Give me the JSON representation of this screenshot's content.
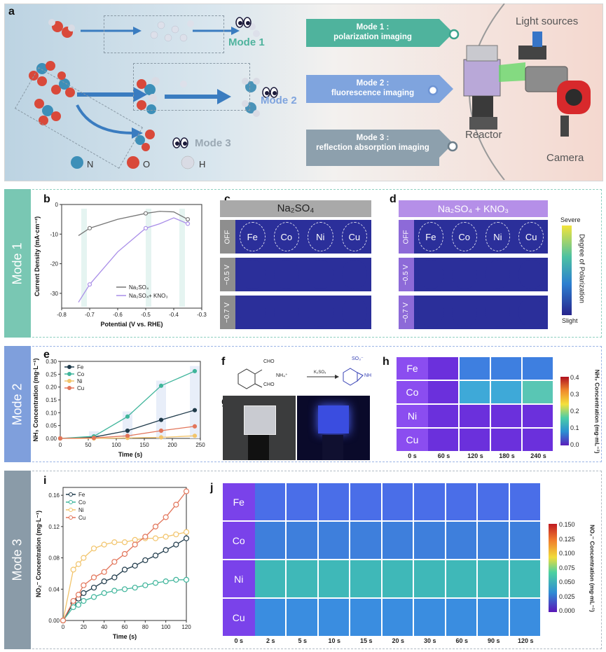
{
  "panel_a": {
    "label": "a",
    "mode1": "Mode 1",
    "mode2": "Mode 2",
    "mode3": "Mode 3",
    "legend": [
      "N",
      "O",
      "H"
    ],
    "boxes": [
      {
        "title": "Mode 1 :",
        "sub": "polarization imaging"
      },
      {
        "title": "Mode 2 :",
        "sub": "fluorescence imaging"
      },
      {
        "title": "Mode 3 :",
        "sub": "reflection absorption imaging"
      }
    ],
    "light_sources": "Light sources",
    "reactor": "Reactor",
    "camera": "Camera"
  },
  "sections": {
    "mode1": "Mode 1",
    "mode2": "Mode 2",
    "mode3": "Mode 3"
  },
  "panel_labels": {
    "b": "b",
    "c": "c",
    "d": "d",
    "e": "e",
    "f": "f",
    "g": "g",
    "h": "h",
    "i": "i",
    "j": "j"
  },
  "colors": {
    "mode1": "#79c7b3",
    "mode2": "#7f9fdc",
    "mode3": "#8a9ba8",
    "fe": "#1f3a4a",
    "co": "#3fb59b",
    "ni": "#f2c46b",
    "cu": "#e2755a"
  },
  "chart_data": [
    {
      "id": "b",
      "type": "line",
      "xlabel": "Potential (V vs. RHE)",
      "ylabel": "Current Density (mA·cm⁻²)",
      "xlim": [
        -0.8,
        -0.3
      ],
      "ylim": [
        -35,
        0
      ],
      "xticks": [
        "-0.8",
        "-0.7",
        "-0.6",
        "-0.5",
        "-0.4",
        "-0.3"
      ],
      "yticks": [
        "0",
        "-10",
        "-20",
        "-30"
      ],
      "series": [
        {
          "name": "Na₂SO₄",
          "color": "#777777",
          "x": [
            -0.74,
            -0.7,
            -0.6,
            -0.5,
            -0.45,
            -0.4,
            -0.35
          ],
          "y": [
            -10.5,
            -8,
            -5,
            -3,
            -2.3,
            -2.5,
            -5
          ]
        },
        {
          "name": "Na₂SO₄+ KNO₃",
          "color": "#a98ee8",
          "x": [
            -0.74,
            -0.7,
            -0.6,
            -0.5,
            -0.45,
            -0.4,
            -0.35
          ],
          "y": [
            -33,
            -27,
            -16,
            -8,
            -6.5,
            -4.5,
            -6.5
          ]
        }
      ],
      "markers_x": [
        -0.7,
        -0.5,
        -0.35
      ]
    },
    {
      "id": "e",
      "type": "line",
      "xlabel": "Time (s)",
      "ylabel": "NH₃ Concentration (mg·L⁻¹)",
      "xlim": [
        0,
        250
      ],
      "ylim": [
        0,
        0.3
      ],
      "xticks": [
        "0",
        "50",
        "100",
        "150",
        "200",
        "250"
      ],
      "yticks": [
        "0.00",
        "0.05",
        "0.10",
        "0.15",
        "0.20",
        "0.25",
        "0.30"
      ],
      "series": [
        {
          "name": "Fe",
          "color": "#1f3a4a",
          "x": [
            0,
            60,
            120,
            180,
            240
          ],
          "y": [
            0,
            0.005,
            0.03,
            0.072,
            0.11
          ]
        },
        {
          "name": "Co",
          "color": "#3fb59b",
          "x": [
            0,
            60,
            120,
            180,
            240
          ],
          "y": [
            0,
            0.008,
            0.085,
            0.205,
            0.262
          ]
        },
        {
          "name": "Ni",
          "color": "#f2c46b",
          "x": [
            0,
            60,
            120,
            180,
            240
          ],
          "y": [
            0,
            0.0,
            0.002,
            0.004,
            0.01
          ]
        },
        {
          "name": "Cu",
          "color": "#e2755a",
          "x": [
            0,
            60,
            120,
            180,
            240
          ],
          "y": [
            0,
            0.002,
            0.01,
            0.03,
            0.047
          ]
        }
      ]
    },
    {
      "id": "i",
      "type": "line",
      "xlabel": "Time (s)",
      "ylabel": "NO₂⁻ Concentration (mg·L⁻¹)",
      "xlim": [
        0,
        120
      ],
      "ylim": [
        0,
        0.17
      ],
      "xticks": [
        "0",
        "20",
        "40",
        "60",
        "80",
        "100",
        "120"
      ],
      "yticks": [
        "0.00",
        "0.04",
        "0.08",
        "0.12",
        "0.16"
      ],
      "series": [
        {
          "name": "Fe",
          "color": "#1f3a4a",
          "x": [
            0,
            10,
            15,
            20,
            30,
            40,
            50,
            60,
            70,
            80,
            90,
            100,
            110,
            120
          ],
          "y": [
            0,
            0.022,
            0.028,
            0.035,
            0.042,
            0.05,
            0.055,
            0.065,
            0.07,
            0.077,
            0.083,
            0.09,
            0.097,
            0.105
          ]
        },
        {
          "name": "Co",
          "color": "#3fb59b",
          "x": [
            0,
            10,
            15,
            20,
            30,
            40,
            50,
            60,
            70,
            80,
            90,
            100,
            110,
            120
          ],
          "y": [
            0,
            0.017,
            0.02,
            0.025,
            0.03,
            0.035,
            0.038,
            0.04,
            0.042,
            0.045,
            0.048,
            0.05,
            0.052,
            0.052
          ]
        },
        {
          "name": "Ni",
          "color": "#f2c46b",
          "x": [
            0,
            10,
            15,
            20,
            30,
            40,
            50,
            60,
            70,
            80,
            90,
            100,
            110,
            120
          ],
          "y": [
            0,
            0.065,
            0.072,
            0.08,
            0.092,
            0.097,
            0.1,
            0.1,
            0.103,
            0.105,
            0.105,
            0.107,
            0.11,
            0.113
          ]
        },
        {
          "name": "Cu",
          "color": "#e2755a",
          "x": [
            0,
            10,
            15,
            20,
            30,
            40,
            50,
            60,
            70,
            80,
            90,
            100,
            110,
            120
          ],
          "y": [
            0,
            0.025,
            0.033,
            0.045,
            0.055,
            0.062,
            0.075,
            0.085,
            0.097,
            0.107,
            0.12,
            0.132,
            0.148,
            0.165
          ]
        }
      ]
    }
  ],
  "panel_c": {
    "title": "Na₂SO₄",
    "rows": [
      "OFF",
      "−0.5 V",
      "−0.7 V"
    ],
    "metals": [
      "Fe",
      "Co",
      "Ni",
      "Cu"
    ]
  },
  "panel_d": {
    "title": "Na₂SO₄ + KNO₃",
    "rows": [
      "OFF",
      "−0.5 V",
      "−0.7 V"
    ],
    "metals": [
      "Fe",
      "Co",
      "Ni",
      "Cu"
    ],
    "colorbar_label": "Degree of Polarization",
    "cb_top": "Severe",
    "cb_bottom": "Slight"
  },
  "panel_f": {
    "r1": "CHO",
    "r2": "CHO",
    "reagent": "NH₄⁺",
    "catalyst": "K₂SO₃",
    "product": "SO₃⁻",
    "nh": "NH"
  },
  "panel_h": {
    "rows": [
      "Fe",
      "Co",
      "Ni",
      "Cu"
    ],
    "times": [
      "0 s",
      "60 s",
      "120 s",
      "180 s",
      "240 s"
    ],
    "colorbar_label": "NH₃ Concentration (mg·mL⁻¹)",
    "cb_ticks": [
      "0.4",
      "0.3",
      "0.2",
      "0.1",
      "0.0"
    ]
  },
  "panel_j": {
    "rows": [
      "Fe",
      "Co",
      "Ni",
      "Cu"
    ],
    "times": [
      "0 s",
      "2 s",
      "5 s",
      "10 s",
      "15 s",
      "20 s",
      "30 s",
      "60 s",
      "90 s",
      "120 s"
    ],
    "colorbar_label": "NO₂⁻ Concentration (mg·mL⁻¹)",
    "cb_ticks": [
      "0.150",
      "0.125",
      "0.100",
      "0.075",
      "0.050",
      "0.025",
      "0.000"
    ]
  }
}
